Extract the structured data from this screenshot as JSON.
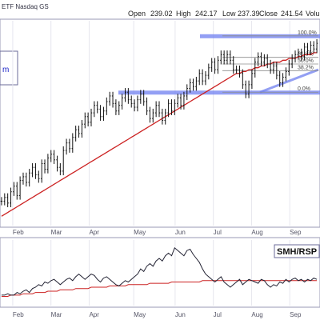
{
  "header": {
    "symbol": "ETF Nasdaq GS",
    "open_label": "Open",
    "open_value": "239.02",
    "high_label": "High",
    "high_value": "242.17",
    "low_label": "Low",
    "low_value": "237.39",
    "close_label": "Close",
    "close_value": "241.54",
    "volume_label": "Volu"
  },
  "legend_box_text": "m",
  "colors": {
    "price_bars": "#111111",
    "moving_average": "#cc2222",
    "support_zone": "#6f7ff0",
    "retracement_lines": "#8c8c8c",
    "panel_border": "#9a9ab5",
    "axis_text": "#555566",
    "grid": "#e6e6ee",
    "ratio_line": "#222233",
    "ratio_ma": "#cc2222"
  },
  "chart_data": [
    {
      "type": "ohlc",
      "x_axis_labels": [
        "Feb",
        "Mar",
        "Apr",
        "May",
        "Jun",
        "Jul",
        "Aug",
        "Sep"
      ],
      "series": [
        {
          "name": "price",
          "values": [
            158,
            160,
            157,
            163,
            166,
            161,
            169,
            171,
            168,
            173,
            176,
            172,
            170,
            178,
            175,
            181,
            183,
            180,
            176,
            174,
            185,
            189,
            186,
            192,
            196,
            194,
            199,
            203,
            200,
            205,
            209,
            207,
            203,
            206,
            211,
            214,
            210,
            206,
            209,
            213,
            216,
            212,
            210,
            208,
            212,
            215,
            211,
            206,
            202,
            205,
            209,
            205,
            201,
            205,
            210,
            206,
            210,
            213,
            209,
            214,
            218,
            221,
            219,
            222,
            226,
            222,
            225,
            229,
            232,
            228,
            233,
            236,
            233,
            236,
            233,
            228,
            228,
            226,
            220,
            215,
            220,
            226,
            232,
            235,
            232,
            234,
            231,
            228,
            230,
            225,
            221,
            224,
            227,
            231,
            234,
            236,
            237,
            235,
            240,
            238,
            241,
            239,
            242
          ]
        },
        {
          "name": "moving_average",
          "values": [
            150,
            151,
            152,
            153,
            154,
            155,
            156,
            157,
            158,
            159,
            160,
            161,
            162,
            163,
            164,
            165,
            166,
            167,
            168,
            169,
            170,
            171,
            172,
            173,
            174,
            175,
            176,
            177,
            178,
            179,
            180,
            181,
            182,
            183,
            184,
            185,
            186,
            187,
            188,
            189,
            190,
            191,
            192,
            193,
            194,
            195,
            196,
            197,
            198,
            199,
            200,
            201,
            202,
            203,
            204,
            205,
            206,
            207,
            208,
            209,
            210,
            211,
            212,
            213,
            214,
            215,
            216,
            217,
            218,
            219,
            220,
            221,
            222,
            223,
            224,
            225,
            226,
            226,
            227,
            227,
            228,
            228,
            229,
            229,
            230,
            230,
            231,
            231,
            232,
            232,
            232,
            233,
            233,
            234,
            234,
            234,
            235,
            235,
            236,
            236,
            236,
            237,
            237
          ]
        }
      ],
      "y_range": [
        145,
        254
      ],
      "fibonacci_labels": [
        "100.0%",
        "61.8%",
        "50.0%",
        "38.2%",
        "0.0%"
      ],
      "fibonacci_levels": [
        1.0,
        0.618,
        0.5,
        0.382,
        0.0
      ],
      "fibonacci_low": 216,
      "fibonacci_high": 246,
      "support_level": 216,
      "resistance_level": 246
    },
    {
      "type": "line",
      "title": "SMH/RSP",
      "x_axis_labels": [
        "Feb",
        "Mar",
        "Apr",
        "May",
        "Jun",
        "Jul",
        "Aug",
        "Sep"
      ],
      "series": [
        {
          "name": "SMH/RSP",
          "values": [
            1.5,
            1.5,
            1.51,
            1.5,
            1.5,
            1.52,
            1.51,
            1.53,
            1.54,
            1.52,
            1.55,
            1.56,
            1.58,
            1.57,
            1.6,
            1.59,
            1.61,
            1.62,
            1.6,
            1.58,
            1.6,
            1.62,
            1.63,
            1.61,
            1.64,
            1.66,
            1.64,
            1.62,
            1.64,
            1.66,
            1.65,
            1.62,
            1.6,
            1.63,
            1.64,
            1.62,
            1.6,
            1.58,
            1.57,
            1.59,
            1.61,
            1.6,
            1.62,
            1.64,
            1.66,
            1.7,
            1.68,
            1.72,
            1.74,
            1.72,
            1.76,
            1.78,
            1.76,
            1.8,
            1.82,
            1.8,
            1.86,
            1.84,
            1.82,
            1.8,
            1.84,
            1.85,
            1.81,
            1.78,
            1.75,
            1.7,
            1.66,
            1.64,
            1.62,
            1.6,
            1.62,
            1.64,
            1.6,
            1.58,
            1.56,
            1.58,
            1.6,
            1.62,
            1.58,
            1.6,
            1.62,
            1.61,
            1.6,
            1.59,
            1.62,
            1.61,
            1.58,
            1.56,
            1.58,
            1.57,
            1.6,
            1.59,
            1.62,
            1.6,
            1.62,
            1.63,
            1.61,
            1.62,
            1.6,
            1.62,
            1.61,
            1.63,
            1.62
          ]
        },
        {
          "name": "moving_average",
          "values": [
            1.49,
            1.49,
            1.49,
            1.5,
            1.5,
            1.5,
            1.5,
            1.51,
            1.51,
            1.51,
            1.51,
            1.52,
            1.52,
            1.52,
            1.52,
            1.53,
            1.53,
            1.53,
            1.53,
            1.54,
            1.54,
            1.54,
            1.54,
            1.54,
            1.55,
            1.55,
            1.55,
            1.55,
            1.55,
            1.56,
            1.56,
            1.56,
            1.56,
            1.56,
            1.56,
            1.57,
            1.57,
            1.57,
            1.57,
            1.57,
            1.57,
            1.58,
            1.58,
            1.58,
            1.58,
            1.58,
            1.58,
            1.58,
            1.59,
            1.59,
            1.59,
            1.59,
            1.59,
            1.59,
            1.59,
            1.6,
            1.6,
            1.6,
            1.6,
            1.6,
            1.6,
            1.6,
            1.6,
            1.6,
            1.6,
            1.61,
            1.61,
            1.61,
            1.61,
            1.61,
            1.61,
            1.61,
            1.61,
            1.61,
            1.61,
            1.61,
            1.61,
            1.61,
            1.61,
            1.61,
            1.61,
            1.61,
            1.61,
            1.61,
            1.61,
            1.61,
            1.61,
            1.61,
            1.61,
            1.61,
            1.61,
            1.61,
            1.61,
            1.61,
            1.61,
            1.61,
            1.61,
            1.61,
            1.61,
            1.61,
            1.61,
            1.61,
            1.61
          ]
        }
      ],
      "y_range": [
        1.42,
        1.92
      ]
    }
  ]
}
